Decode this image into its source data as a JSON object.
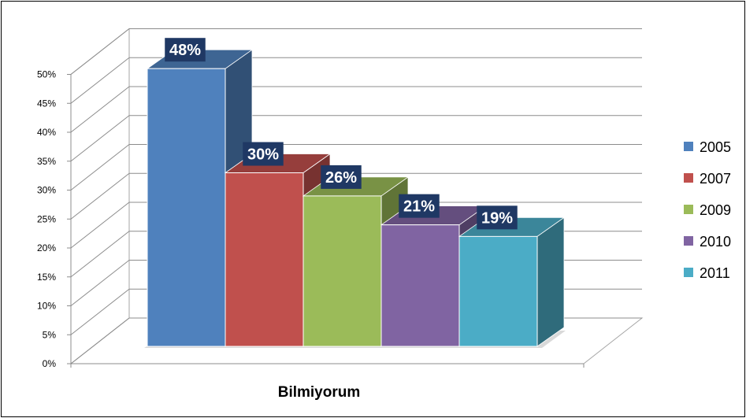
{
  "chart_data": {
    "type": "bar",
    "categories": [
      "Bilmiyorum"
    ],
    "series": [
      {
        "name": "2005",
        "values": [
          48
        ],
        "color": "#4F81BD",
        "label": "48%"
      },
      {
        "name": "2007",
        "values": [
          30
        ],
        "color": "#C0504D",
        "label": "30%"
      },
      {
        "name": "2009",
        "values": [
          26
        ],
        "color": "#9BBB59",
        "label": "26%"
      },
      {
        "name": "2010",
        "values": [
          21
        ],
        "color": "#8064A2",
        "label": "21%"
      },
      {
        "name": "2011",
        "values": [
          19
        ],
        "color": "#4BACC6",
        "label": "19%"
      }
    ],
    "ylim": [
      0,
      50
    ],
    "yticks": [
      "0%",
      "5%",
      "10%",
      "15%",
      "20%",
      "25%",
      "30%",
      "35%",
      "40%",
      "45%",
      "50%"
    ],
    "grid": true,
    "legend_position": "right",
    "data_label_background": "#1F3864",
    "three_d": true
  }
}
